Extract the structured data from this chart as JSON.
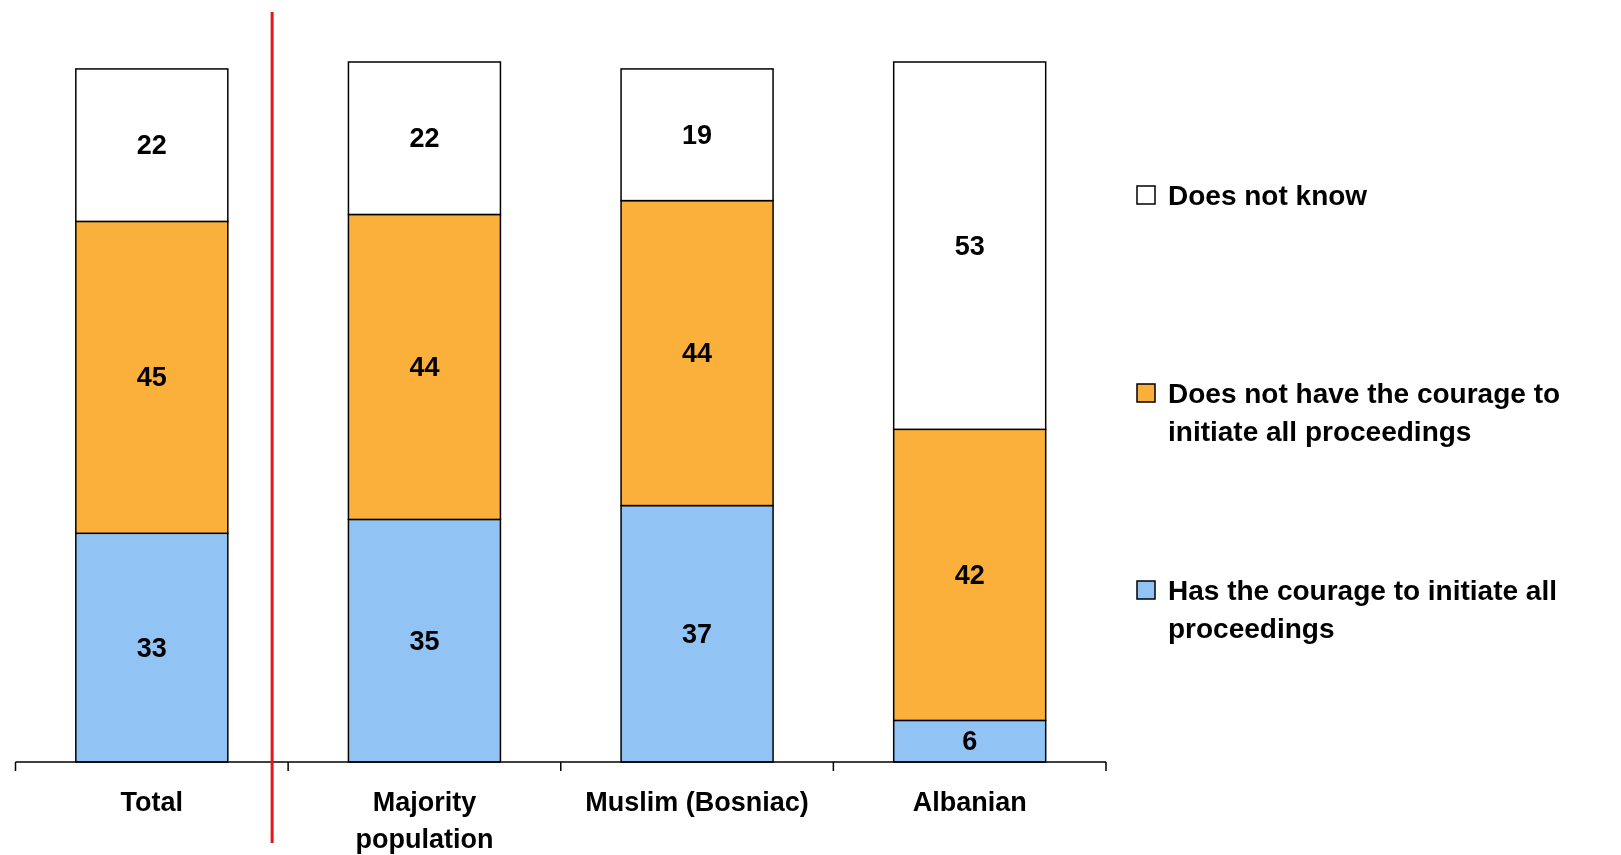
{
  "chart_data": {
    "type": "bar",
    "stacked": true,
    "data_labels": true,
    "legend": "right",
    "categories": [
      "Total",
      "Majority population",
      "Muslim (Bosniac)",
      "Albanian"
    ],
    "series": [
      {
        "name": "Has the courage to initiate all proceedings",
        "color": "#91c4f5",
        "values": [
          33,
          35,
          37,
          6
        ]
      },
      {
        "name": "Does not have the courage to initiate all proceedings",
        "color": "#fbb03b",
        "values": [
          45,
          44,
          44,
          42
        ]
      },
      {
        "name": "Does not know",
        "color": "#ffffff",
        "values": [
          22,
          22,
          19,
          53
        ]
      }
    ]
  }
}
